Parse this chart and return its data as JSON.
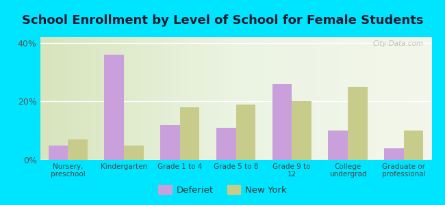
{
  "title": "School Enrollment by Level of School for Female Students",
  "categories": [
    "Nursery,\npreschool",
    "Kindergarten",
    "Grade 1 to 4",
    "Grade 5 to 8",
    "Grade 9 to\n12",
    "College\nundergrad",
    "Graduate or\nprofessional"
  ],
  "deferiet": [
    5,
    36,
    12,
    11,
    26,
    10,
    4
  ],
  "new_york": [
    7,
    5,
    18,
    19,
    20,
    25,
    10
  ],
  "deferiet_color": "#c9a0dc",
  "new_york_color": "#c8cc8a",
  "ylim": [
    0,
    42
  ],
  "yticks": [
    0,
    20,
    40
  ],
  "ytick_labels": [
    "0%",
    "20%",
    "40%"
  ],
  "background_color": "#00e5ff",
  "title_fontsize": 13,
  "bar_width": 0.35,
  "legend_label_deferiet": "Deferiet",
  "legend_label_ny": "New York"
}
